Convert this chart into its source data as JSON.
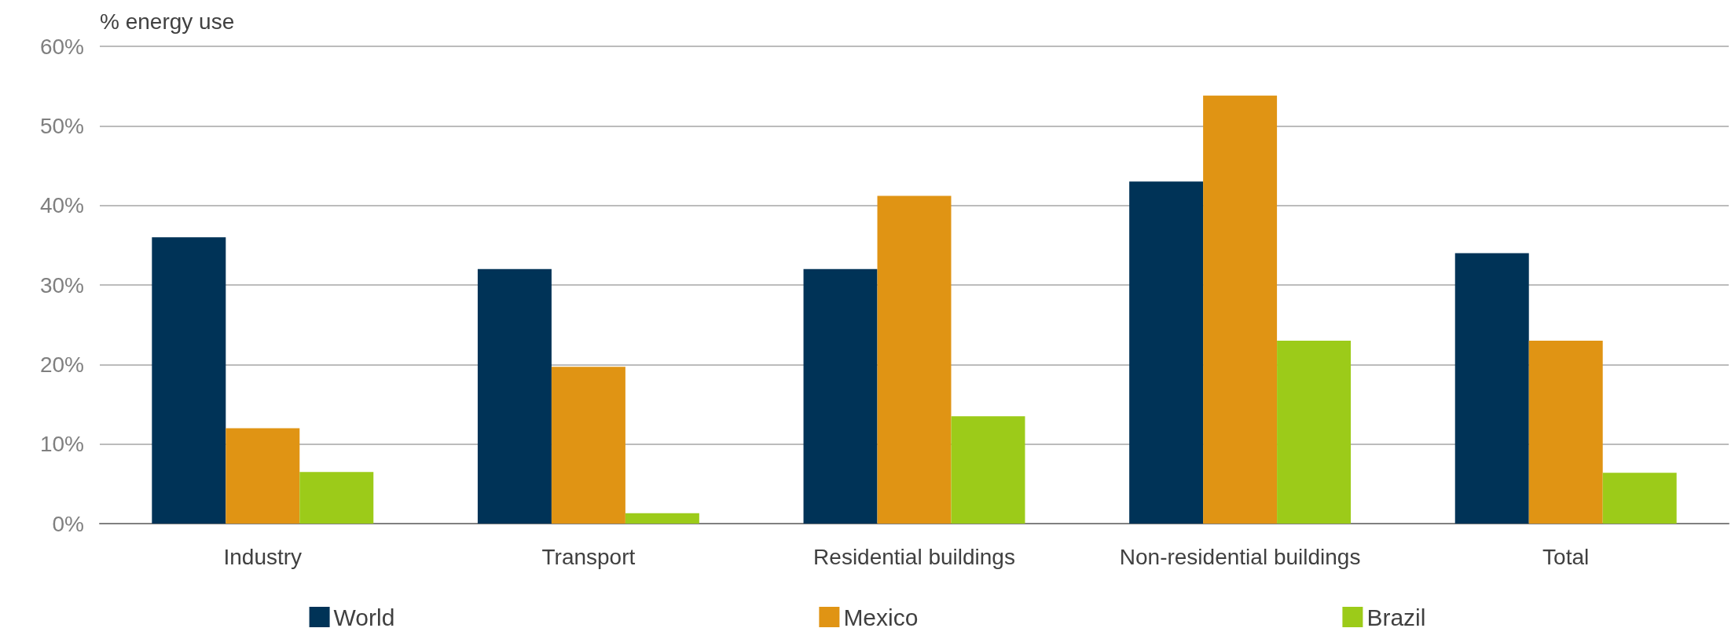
{
  "chart_data": {
    "type": "bar",
    "ylabel": "% energy use",
    "categories": [
      "Industry",
      "Transport",
      "Residential buildings",
      "Non-residential buildings",
      "Total"
    ],
    "series": [
      {
        "name": "World",
        "color": "#003357",
        "values": [
          36,
          32,
          32,
          43,
          34
        ]
      },
      {
        "name": "Mexico",
        "color": "#e09414",
        "values": [
          12,
          19.7,
          41.2,
          53.8,
          23
        ]
      },
      {
        "name": "Brazil",
        "color": "#9ccb19",
        "values": [
          6.5,
          1.3,
          13.5,
          23,
          6.4
        ]
      }
    ],
    "ylim": [
      0,
      60
    ],
    "yticks": [
      {
        "value": 0,
        "label": "0%"
      },
      {
        "value": 10,
        "label": "10%"
      },
      {
        "value": 20,
        "label": "20%"
      },
      {
        "value": 30,
        "label": "30%"
      },
      {
        "value": 40,
        "label": "40%"
      },
      {
        "value": 50,
        "label": "50%"
      },
      {
        "value": 60,
        "label": "60%"
      }
    ],
    "grid": "y",
    "legend": "bottom"
  }
}
